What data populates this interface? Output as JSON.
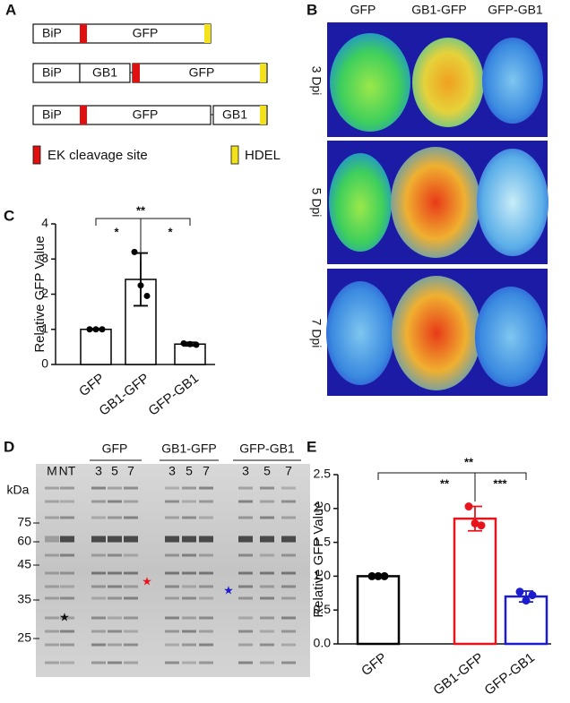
{
  "panel_labels": [
    "A",
    "B",
    "C",
    "D",
    "E"
  ],
  "constructs": {
    "rows": [
      [
        "BiP",
        "GFP"
      ],
      [
        "BiP",
        "GB1",
        "GFP"
      ],
      [
        "BiP",
        "GFP",
        "GB1"
      ]
    ],
    "legend": [
      "EK cleavage site",
      "HDEL"
    ]
  },
  "leaves": {
    "columns": [
      "GFP",
      "GB1-GFP",
      "GFP-GB1"
    ],
    "rows": [
      "3 Dpi",
      "5 Dpi",
      "7 Dpi"
    ]
  },
  "gel": {
    "unit": "kDa",
    "lanes": [
      "M",
      "NT"
    ],
    "groups": [
      "GFP",
      "GB1-GFP",
      "GFP-GB1"
    ],
    "timepoints": [
      "3",
      "5",
      "7"
    ],
    "markers": [
      75,
      60,
      45,
      35,
      25
    ]
  },
  "chart_data": [
    {
      "type": "bar",
      "ylabel": "Relative GFP Value",
      "categories": [
        "GFP",
        "GB1-GFP",
        "GFP-GB1"
      ],
      "values": [
        1.0,
        2.42,
        0.58
      ],
      "errors": [
        0.02,
        0.75,
        0.05
      ],
      "points": [
        [
          1,
          1,
          1
        ],
        [
          3.2,
          2.25,
          1.95
        ],
        [
          0.6,
          0.58,
          0.56
        ]
      ],
      "color": "#000000",
      "ylim": [
        0,
        4
      ],
      "yticks": [
        0,
        1,
        2,
        3,
        4
      ],
      "annotations": [
        "*",
        "*",
        "**"
      ]
    },
    {
      "type": "bar",
      "ylabel": "Relative GFP Value",
      "categories": [
        "GFP",
        "GB1-GFP",
        "GFP-GB1"
      ],
      "values": [
        1.0,
        1.85,
        0.7
      ],
      "errors": [
        0.01,
        0.18,
        0.08
      ],
      "points": [
        [
          1,
          1,
          1
        ],
        [
          2.03,
          1.78,
          1.75
        ],
        [
          0.77,
          0.64,
          0.72
        ]
      ],
      "colors": [
        "#000000",
        "#e8141b",
        "#1c1ccf"
      ],
      "ylim": [
        0,
        2.5
      ],
      "yticks": [
        {
          "value": 0,
          "label": "0.0"
        },
        0.5,
        {
          "value": 1,
          "label": "1.0"
        },
        1.5,
        {
          "value": 2,
          "label": "2.0"
        },
        2.5
      ],
      "annotations": [
        "**",
        "***",
        "**"
      ]
    }
  ]
}
